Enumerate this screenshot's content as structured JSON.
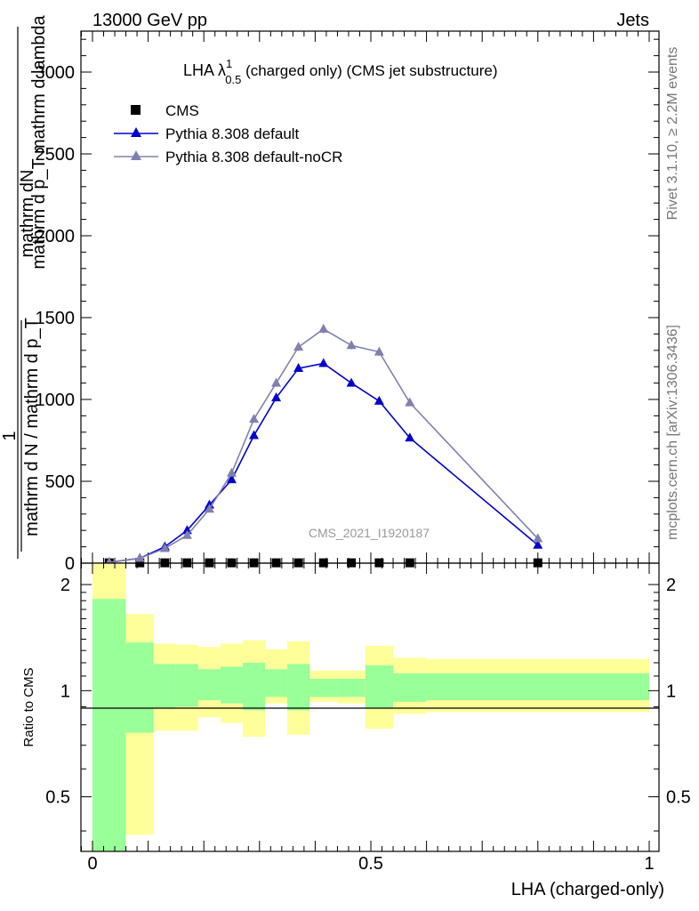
{
  "header": {
    "left": "13000 GeV pp",
    "right": "Jets"
  },
  "side": {
    "rivet": "Rivet 3.1.10, ≥ 2.2M events",
    "mcplots": "mcplots.cern.ch [arXiv:1306.3436]"
  },
  "watermark": "CMS_2021_I1920187",
  "chart_data": [
    {
      "type": "line",
      "title": "LHA λ",
      "title_sup": "1",
      "title_sub": "0.5",
      "title_rest": " (charged only) (CMS jet substructure)",
      "ylabel_num": "mathrm dN",
      "ylabel_num_sub": "mathrm d p_T mathrm d lambda",
      "ylabel_one": "1",
      "ylabel_den": "mathrm d N / mathrm d p_T",
      "ylim": [
        0,
        3250
      ],
      "yticks": [
        500,
        1000,
        1500,
        2000,
        2500,
        3000
      ],
      "ytick_labels": [
        "500",
        "1000",
        "1500",
        "2000",
        "2500",
        "3000"
      ],
      "xlim": [
        0,
        1
      ],
      "legend_position": "top-left",
      "series": [
        {
          "name": "CMS",
          "color": "#000000",
          "marker": "square",
          "x": [
            0.03,
            0.085,
            0.13,
            0.17,
            0.21,
            0.25,
            0.29,
            0.33,
            0.37,
            0.415,
            0.465,
            0.515,
            0.57,
            0.8
          ],
          "y": [
            2,
            2,
            2,
            2,
            2,
            2,
            2,
            2,
            2,
            2,
            2,
            2,
            2,
            2
          ]
        },
        {
          "name": "Pythia 8.308 default",
          "color": "#0000cc",
          "marker": "triangle",
          "x": [
            0.03,
            0.085,
            0.13,
            0.17,
            0.21,
            0.25,
            0.29,
            0.33,
            0.37,
            0.415,
            0.465,
            0.515,
            0.57,
            0.8
          ],
          "y": [
            5,
            30,
            100,
            200,
            355,
            510,
            780,
            1010,
            1190,
            1220,
            1100,
            990,
            765,
            110
          ]
        },
        {
          "name": "Pythia 8.308 default-noCR",
          "color": "#8080b0",
          "marker": "triangle",
          "x": [
            0.03,
            0.085,
            0.13,
            0.17,
            0.21,
            0.25,
            0.29,
            0.33,
            0.37,
            0.415,
            0.465,
            0.515,
            0.57,
            0.8
          ],
          "y": [
            5,
            30,
            90,
            170,
            330,
            550,
            880,
            1100,
            1320,
            1430,
            1330,
            1290,
            980,
            150
          ]
        }
      ]
    },
    {
      "type": "area",
      "ylabel": "Ratio to CMS",
      "xlabel": "LHA (charged-only)",
      "ylim": [
        0.35,
        2.3
      ],
      "yticks": [
        0.5,
        1,
        2
      ],
      "ytick_labels": [
        "0.5",
        "1",
        "2"
      ],
      "xlim": [
        0,
        1
      ],
      "xticks": [
        0,
        0.5,
        1
      ],
      "xtick_labels": [
        "0",
        "0.5",
        "1"
      ],
      "bands": {
        "bin_edges": [
          0,
          0.06,
          0.11,
          0.15,
          0.19,
          0.23,
          0.27,
          0.31,
          0.35,
          0.39,
          0.44,
          0.49,
          0.54,
          0.6,
          1.0
        ],
        "yellow_color": "#ffff99",
        "green_color": "#99ff99",
        "yellow_low": [
          0.35,
          0.39,
          0.77,
          0.77,
          0.84,
          0.81,
          0.74,
          0.92,
          0.75,
          0.93,
          0.92,
          0.78,
          0.86,
          0.87
        ],
        "yellow_high": [
          2.3,
          1.65,
          1.36,
          1.35,
          1.33,
          1.36,
          1.39,
          1.31,
          1.38,
          1.14,
          1.14,
          1.34,
          1.24,
          1.23
        ],
        "green_low": [
          0.35,
          0.76,
          0.89,
          0.9,
          0.94,
          0.92,
          0.88,
          0.96,
          0.88,
          0.96,
          0.96,
          0.89,
          0.93,
          0.94
        ],
        "green_high": [
          1.82,
          1.37,
          1.19,
          1.19,
          1.15,
          1.17,
          1.2,
          1.15,
          1.19,
          1.08,
          1.08,
          1.18,
          1.12,
          1.12
        ]
      }
    }
  ]
}
